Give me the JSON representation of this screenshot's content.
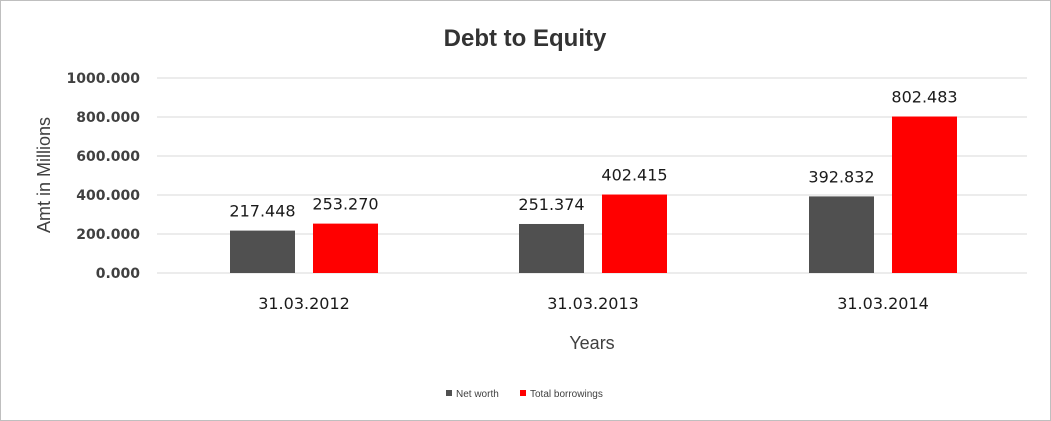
{
  "chart_data": {
    "type": "bar",
    "title": "Debt to Equity",
    "xlabel": "Years",
    "ylabel": "Amt in Millions",
    "categories": [
      "31.03.2012",
      "31.03.2013",
      "31.03.2014"
    ],
    "series": [
      {
        "name": "Net worth",
        "color": "#505050",
        "values": [
          217.448,
          251.374,
          392.832
        ],
        "labels": [
          "217.448",
          "251.374",
          "392.832"
        ]
      },
      {
        "name": "Total borrowings",
        "color": "#ff0000",
        "values": [
          253.27,
          402.415,
          802.483
        ],
        "labels": [
          "253.270",
          "402.415",
          "802.483"
        ]
      }
    ],
    "ylim": [
      0,
      1000
    ],
    "yticks": [
      0,
      200,
      400,
      600,
      800,
      1000
    ],
    "ytick_labels": [
      "0.000",
      "200.000",
      "400.000",
      "600.000",
      "800.000",
      "1000.000"
    ],
    "grid": true,
    "legend_position": "bottom"
  }
}
